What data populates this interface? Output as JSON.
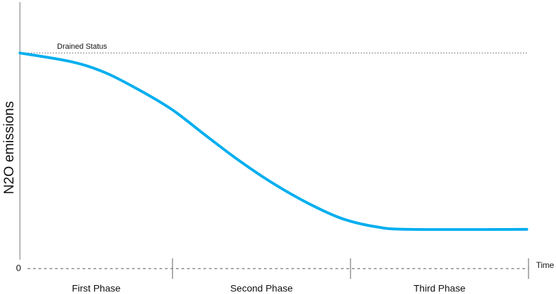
{
  "chart_data": {
    "type": "line",
    "y_label": "N2O emissions",
    "x_label": "Time",
    "x": [
      0,
      0.3,
      0.5,
      0.7,
      0.9,
      1.1,
      1.3,
      1.5,
      1.7,
      1.9,
      2.1,
      2.3,
      2.99
    ],
    "series": [
      {
        "color": "#00aeef",
        "values": [
          100,
          96,
          91,
          83,
          73.6,
          61.5,
          49.7,
          39.2,
          30.3,
          23.2,
          19.4,
          18.2,
          18.2
        ]
      }
    ],
    "reference": {
      "label": "Drained Status",
      "value": 100
    },
    "phases": [
      {
        "label": "First Phase",
        "start": 0,
        "end": 0.9
      },
      {
        "label": "Second Phase",
        "start": 0.9,
        "end": 1.95
      },
      {
        "label": "Third Phase",
        "start": 1.95,
        "end": 3
      }
    ],
    "xlim": [
      0,
      3
    ],
    "ylim": [
      0,
      123
    ],
    "yticks": [
      0
    ]
  }
}
